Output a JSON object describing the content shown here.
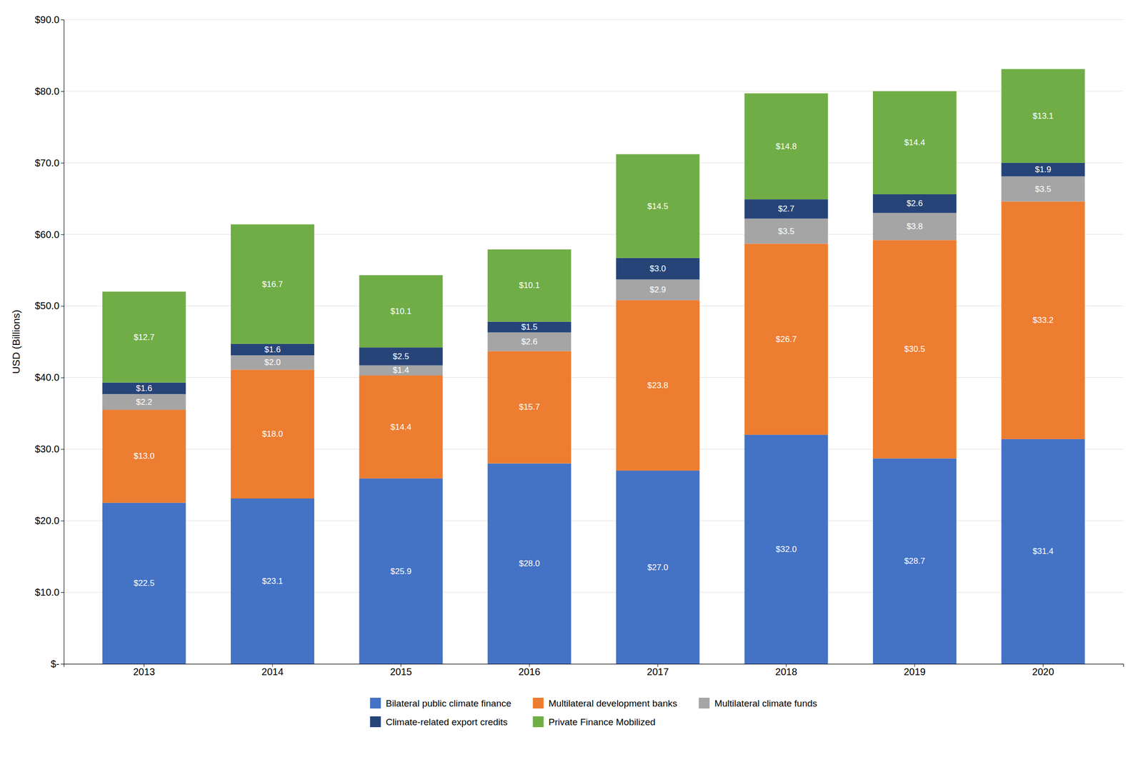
{
  "chart_data": {
    "type": "bar",
    "stacked": true,
    "categories": [
      "2013",
      "2014",
      "2015",
      "2016",
      "2017",
      "2018",
      "2019",
      "2020"
    ],
    "series": [
      {
        "name": "Bilateral public climate finance",
        "color": "#4472C4",
        "values": [
          22.5,
          23.1,
          25.9,
          28.0,
          27.0,
          32.0,
          28.7,
          31.4
        ],
        "value_labels": [
          "$22.5",
          "$23.1",
          "$25.9",
          "$28.0",
          "$27.0",
          "$32.0",
          "$28.7",
          "$31.4"
        ]
      },
      {
        "name": "Multilateral development banks",
        "color": "#ED7D31",
        "values": [
          13.0,
          18.0,
          14.4,
          15.7,
          23.8,
          26.7,
          30.5,
          33.2
        ],
        "value_labels": [
          "$13.0",
          "$18.0",
          "$14.4",
          "$15.7",
          "$23.8",
          "$26.7",
          "$30.5",
          "$33.2"
        ]
      },
      {
        "name": "Multilateral climate funds",
        "color": "#A5A5A5",
        "values": [
          2.2,
          2.0,
          1.4,
          2.6,
          2.9,
          3.5,
          3.8,
          3.5
        ],
        "value_labels": [
          "$2.2",
          "$2.0",
          "$1.4",
          "$2.6",
          "$2.9",
          "$3.5",
          "$3.8",
          "$3.5"
        ]
      },
      {
        "name": "Climate-related export credits",
        "color": "#264478",
        "values": [
          1.6,
          1.6,
          2.5,
          1.5,
          3.0,
          2.7,
          2.6,
          1.9
        ],
        "value_labels": [
          "$1.6",
          "$1.6",
          "$2.5",
          "$1.5",
          "$3.0",
          "$2.7",
          "$2.6",
          "$1.9"
        ]
      },
      {
        "name": "Private Finance Mobilized",
        "color": "#70AD47",
        "values": [
          12.7,
          16.7,
          10.1,
          10.1,
          14.5,
          14.8,
          14.4,
          13.1
        ],
        "value_labels": [
          "$12.7",
          "$16.7",
          "$10.1",
          "$10.1",
          "$14.5",
          "$14.8",
          "$14.4",
          "$13.1"
        ]
      }
    ],
    "ylabel": "USD (Billions)",
    "ylim": [
      0,
      90
    ],
    "yticks": [
      {
        "value": 0,
        "label": "$-"
      },
      {
        "value": 10,
        "label": "$10.0"
      },
      {
        "value": 20,
        "label": "$20.0"
      },
      {
        "value": 30,
        "label": "$30.0"
      },
      {
        "value": 40,
        "label": "$40.0"
      },
      {
        "value": 50,
        "label": "$50.0"
      },
      {
        "value": 60,
        "label": "$60.0"
      },
      {
        "value": 70,
        "label": "$70.0"
      },
      {
        "value": 80,
        "label": "$80.0"
      },
      {
        "value": 90,
        "label": "$90.0"
      }
    ],
    "grid": true,
    "data_labels": true,
    "legend": "bottom"
  }
}
